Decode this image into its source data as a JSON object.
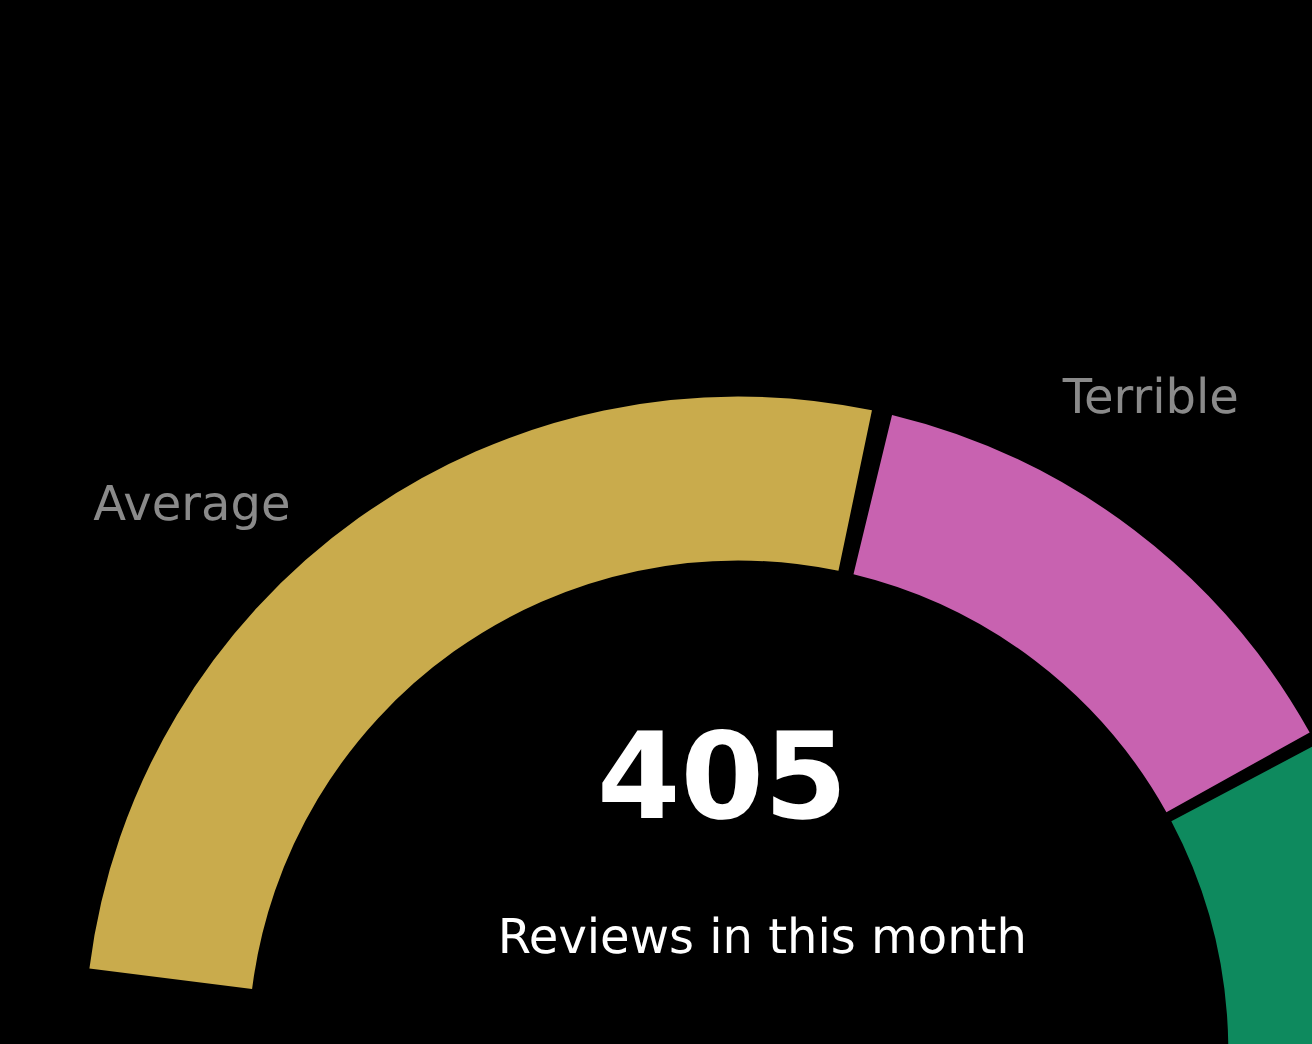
{
  "chart_data": {
    "type": "donut",
    "categories": [
      "Average",
      "Terrible",
      null
    ],
    "values": [
      50,
      25,
      25
    ],
    "colors": [
      "#c9ab4c",
      "#c862b0",
      "#0e8a5e"
    ],
    "annotations": [
      "405",
      "Reviews in this month"
    ],
    "legend": false
  }
}
